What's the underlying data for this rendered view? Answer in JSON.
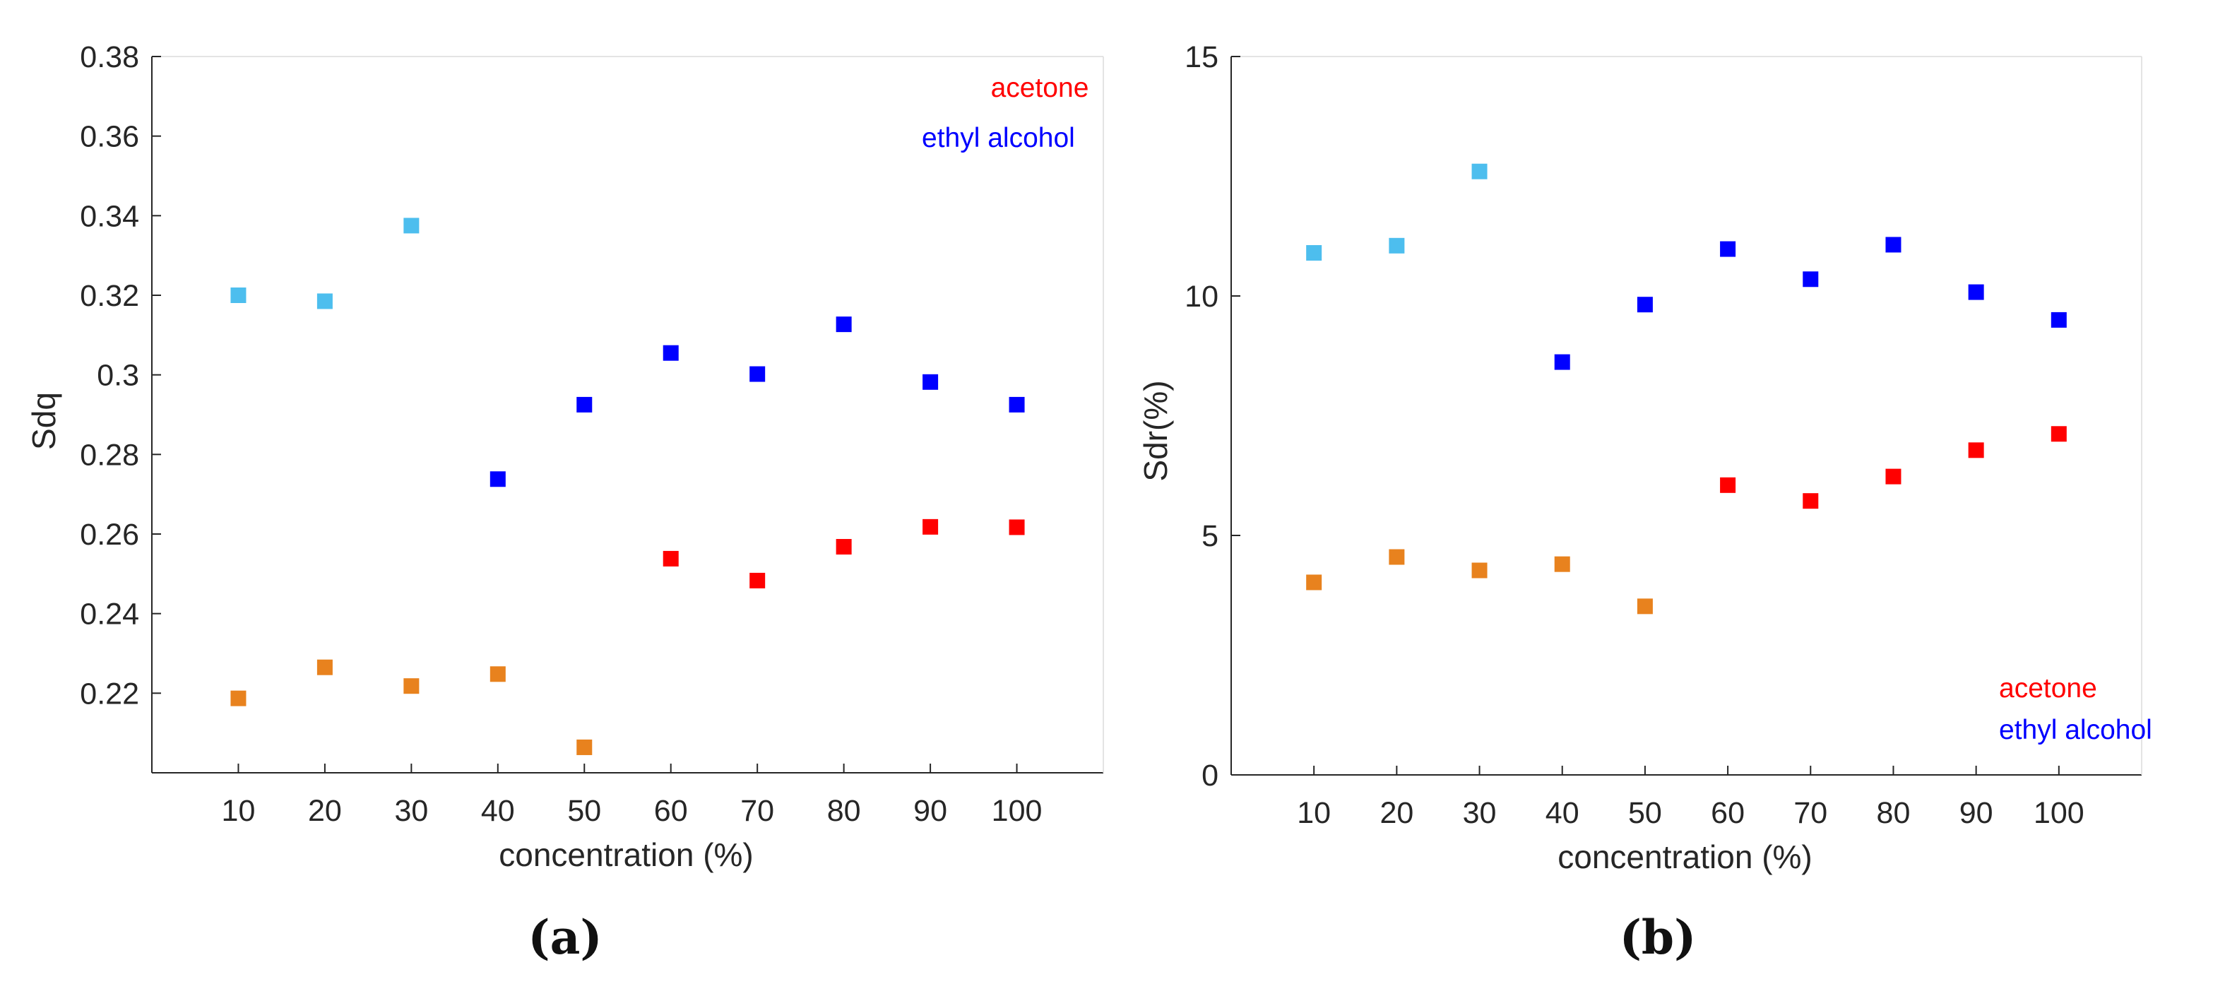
{
  "chart_data": [
    {
      "type": "scatter",
      "panel_caption": "(a)",
      "ylabel": "Sdq",
      "xlabel": "concentration (%)",
      "ylim": [
        0.2,
        0.38
      ],
      "xlim": [
        0,
        110
      ],
      "x_ticks": [
        10,
        20,
        30,
        40,
        50,
        60,
        70,
        80,
        90,
        100
      ],
      "y_ticks": [
        0.22,
        0.24,
        0.26,
        0.28,
        0.3,
        0.32,
        0.34,
        0.36,
        0.38
      ],
      "y_tick_labels": [
        "0.22",
        "0.24",
        "0.26",
        "0.28",
        "0.3",
        "0.32",
        "0.34",
        "0.36",
        "0.38"
      ],
      "legend": [
        {
          "label": "acetone",
          "color": "#ff0000"
        },
        {
          "label": "ethyl alcohol",
          "color": "#0000ff"
        }
      ],
      "legend_position": "top-right",
      "series": [
        {
          "name": "ethyl alcohol (light)",
          "color": "#4dbeee",
          "x": [
            10,
            20,
            30
          ],
          "y": [
            0.32,
            0.3185,
            0.3375
          ]
        },
        {
          "name": "ethyl alcohol",
          "color": "#0000ff",
          "x": [
            40,
            50,
            60,
            70,
            80,
            90,
            100
          ],
          "y": [
            0.2738,
            0.2925,
            0.3055,
            0.3002,
            0.3127,
            0.2982,
            0.2925
          ]
        },
        {
          "name": "acetone (orange)",
          "color": "#e8821e",
          "x": [
            10,
            20,
            30,
            40,
            50
          ],
          "y": [
            0.2187,
            0.2265,
            0.2218,
            0.2248,
            0.2064
          ]
        },
        {
          "name": "acetone",
          "color": "#ff0000",
          "x": [
            60,
            70,
            80,
            90,
            100
          ],
          "y": [
            0.2538,
            0.2483,
            0.2568,
            0.2618,
            0.2617
          ]
        }
      ]
    },
    {
      "type": "scatter",
      "panel_caption": "(b)",
      "ylabel": "Sdr(%)",
      "xlabel": "concentration (%)",
      "ylim": [
        0,
        15
      ],
      "xlim": [
        0,
        110
      ],
      "x_ticks": [
        10,
        20,
        30,
        40,
        50,
        60,
        70,
        80,
        90,
        100
      ],
      "y_ticks": [
        0,
        5,
        10,
        15
      ],
      "y_tick_labels": [
        "0",
        "5",
        "10",
        "15"
      ],
      "legend": [
        {
          "label": "acetone",
          "color": "#ff0000"
        },
        {
          "label": "ethyl alcohol",
          "color": "#0000ff"
        }
      ],
      "legend_position": "bottom-right",
      "series": [
        {
          "name": "ethyl alcohol (light)",
          "color": "#4dbeee",
          "x": [
            10,
            20,
            30
          ],
          "y": [
            10.9,
            11.05,
            12.6
          ]
        },
        {
          "name": "ethyl alcohol",
          "color": "#0000ff",
          "x": [
            40,
            50,
            60,
            70,
            80,
            90,
            100
          ],
          "y": [
            8.62,
            9.82,
            10.98,
            10.35,
            11.07,
            10.08,
            9.5
          ]
        },
        {
          "name": "acetone (orange)",
          "color": "#e8821e",
          "x": [
            10,
            20,
            30,
            40,
            50
          ],
          "y": [
            4.02,
            4.55,
            4.27,
            4.4,
            3.52
          ]
        },
        {
          "name": "acetone",
          "color": "#ff0000",
          "x": [
            60,
            70,
            80,
            90,
            100
          ],
          "y": [
            6.05,
            5.72,
            6.23,
            6.78,
            7.12
          ]
        }
      ]
    }
  ]
}
